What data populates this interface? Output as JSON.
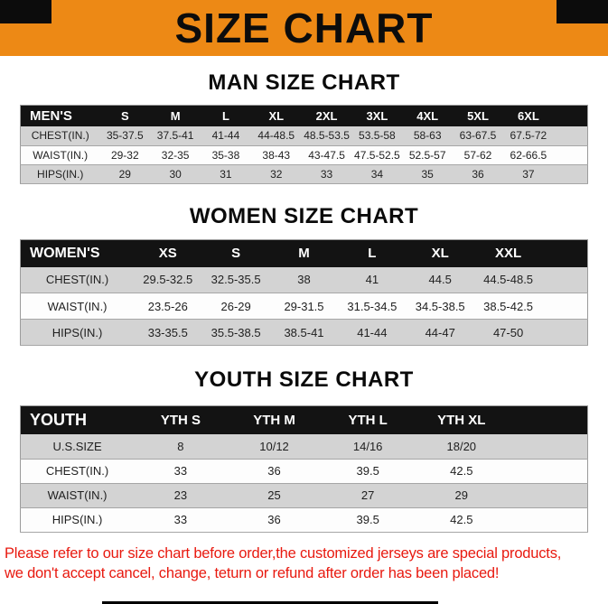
{
  "banner": {
    "title": "SIZE CHART"
  },
  "colors": {
    "banner_orange": "#ED8915",
    "corner_black": "#0c0c0c",
    "table_header_black": "#131313",
    "row_stripe_gray": "#d3d3d3",
    "footer_red": "#E8190F"
  },
  "sections": [
    {
      "heading": "MAN SIZE CHART",
      "table": {
        "filler": true,
        "header": [
          "MEN'S",
          "S",
          "M",
          "L",
          "XL",
          "2XL",
          "3XL",
          "4XL",
          "5XL",
          "6XL"
        ],
        "rows": [
          [
            "CHEST(IN.)",
            "35-37.5",
            "37.5-41",
            "41-44",
            "44-48.5",
            "48.5-53.5",
            "53.5-58",
            "58-63",
            "63-67.5",
            "67.5-72"
          ],
          [
            "WAIST(IN.)",
            "29-32",
            "32-35",
            "35-38",
            "38-43",
            "43-47.5",
            "47.5-52.5",
            "52.5-57",
            "57-62",
            "62-66.5"
          ],
          [
            "HIPS(IN.)",
            "29",
            "30",
            "31",
            "32",
            "33",
            "34",
            "35",
            "36",
            "37"
          ]
        ]
      }
    },
    {
      "heading": "WOMEN SIZE CHART",
      "table": {
        "filler": true,
        "header": [
          "WOMEN'S",
          "XS",
          "S",
          "M",
          "L",
          "XL",
          "XXL"
        ],
        "rows": [
          [
            "CHEST(IN.)",
            "29.5-32.5",
            "32.5-35.5",
            "38",
            "41",
            "44.5",
            "44.5-48.5"
          ],
          [
            "WAIST(IN.)",
            "23.5-26",
            "26-29",
            "29-31.5",
            "31.5-34.5",
            "34.5-38.5",
            "38.5-42.5"
          ],
          [
            "HIPS(IN.)",
            "33-35.5",
            "35.5-38.5",
            "38.5-41",
            "41-44",
            "44-47",
            "47-50"
          ]
        ]
      }
    },
    {
      "heading": "YOUTH SIZE CHART",
      "table": {
        "filler": true,
        "header": [
          "YOUTH",
          "YTH S",
          "YTH M",
          "YTH L",
          "YTH XL"
        ],
        "rows": [
          [
            "U.S.SIZE",
            "8",
            "10/12",
            "14/16",
            "18/20"
          ],
          [
            "CHEST(IN.)",
            "33",
            "36",
            "39.5",
            "42.5"
          ],
          [
            "WAIST(IN.)",
            "23",
            "25",
            "27",
            "29"
          ],
          [
            "HIPS(IN.)",
            "33",
            "36",
            "39.5",
            "42.5"
          ]
        ]
      }
    }
  ],
  "footer": {
    "line1": "Please refer to our size chart before order,the customized jerseys are special products,",
    "line2": "we don't accept cancel, change, teturn or refund after order has been placed!"
  }
}
